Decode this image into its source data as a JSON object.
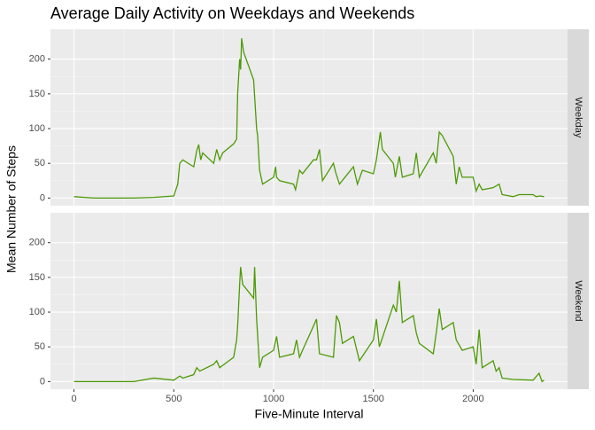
{
  "chart_data": {
    "type": "line",
    "title": "Average Daily Activity on Weekdays and Weekends",
    "x_label": "Five-Minute Interval",
    "y_label": "Mean Number of Steps",
    "facet": true,
    "grid": true,
    "xlim": [
      -117.75,
      2472.75
    ],
    "xticks": [
      0,
      500,
      1000,
      1500,
      2000
    ],
    "ylim": [
      -11,
      243
    ],
    "yticks": [
      0,
      50,
      100,
      150,
      200
    ],
    "series": [
      {
        "name": "Weekday",
        "color": "#4d9a06",
        "x": [
          0,
          100,
          200,
          300,
          400,
          500,
          520,
          530,
          545,
          600,
          615,
          625,
          635,
          645,
          700,
          715,
          730,
          745,
          800,
          815,
          820,
          830,
          835,
          840,
          850,
          900,
          915,
          920,
          930,
          945,
          1000,
          1010,
          1015,
          1030,
          1100,
          1110,
          1130,
          1145,
          1200,
          1215,
          1230,
          1245,
          1300,
          1310,
          1330,
          1400,
          1420,
          1445,
          1500,
          1515,
          1530,
          1535,
          1545,
          1600,
          1610,
          1630,
          1645,
          1700,
          1715,
          1730,
          1800,
          1815,
          1830,
          1845,
          1900,
          1915,
          1930,
          1945,
          2000,
          2015,
          2030,
          2045,
          2100,
          2130,
          2145,
          2200,
          2230,
          2300,
          2315,
          2335,
          2355
        ],
        "values": [
          2,
          0,
          0,
          0,
          1,
          3,
          20,
          50,
          55,
          45,
          68,
          77,
          55,
          65,
          50,
          70,
          55,
          65,
          78,
          85,
          150,
          200,
          185,
          230,
          210,
          170,
          100,
          90,
          40,
          20,
          30,
          45,
          30,
          25,
          20,
          12,
          40,
          35,
          55,
          55,
          70,
          25,
          50,
          38,
          20,
          45,
          20,
          40,
          35,
          55,
          85,
          95,
          70,
          50,
          30,
          60,
          30,
          35,
          65,
          30,
          65,
          50,
          95,
          90,
          60,
          20,
          45,
          30,
          30,
          10,
          20,
          12,
          15,
          20,
          5,
          2,
          5,
          5,
          2,
          3,
          2
        ]
      },
      {
        "name": "Weekend",
        "color": "#4d9a06",
        "x": [
          0,
          100,
          200,
          300,
          400,
          500,
          530,
          545,
          600,
          615,
          630,
          700,
          715,
          730,
          800,
          815,
          820,
          830,
          835,
          845,
          900,
          905,
          915,
          930,
          945,
          1000,
          1015,
          1030,
          1100,
          1115,
          1130,
          1145,
          1200,
          1215,
          1230,
          1300,
          1315,
          1330,
          1345,
          1400,
          1430,
          1500,
          1515,
          1530,
          1600,
          1615,
          1630,
          1645,
          1700,
          1715,
          1730,
          1800,
          1815,
          1830,
          1845,
          1900,
          1915,
          1945,
          2000,
          2015,
          2030,
          2045,
          2100,
          2115,
          2130,
          2145,
          2200,
          2300,
          2330,
          2345,
          2355
        ],
        "values": [
          0,
          0,
          0,
          0,
          5,
          2,
          8,
          5,
          10,
          20,
          15,
          25,
          30,
          20,
          35,
          60,
          80,
          140,
          165,
          140,
          120,
          165,
          90,
          20,
          35,
          45,
          65,
          35,
          40,
          60,
          35,
          45,
          80,
          90,
          40,
          35,
          95,
          85,
          55,
          65,
          30,
          60,
          90,
          50,
          110,
          100,
          145,
          85,
          95,
          70,
          55,
          40,
          70,
          105,
          75,
          85,
          60,
          45,
          50,
          25,
          75,
          20,
          30,
          15,
          20,
          5,
          3,
          2,
          12,
          0,
          2
        ]
      }
    ]
  }
}
